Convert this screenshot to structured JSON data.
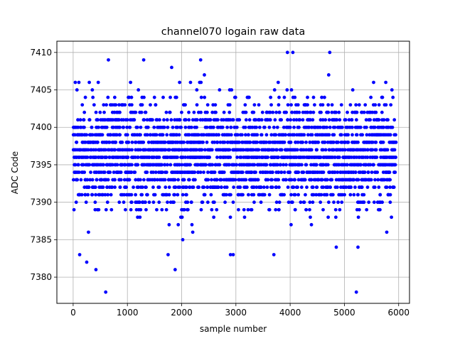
{
  "chart_data": {
    "type": "scatter",
    "title": "channel070 logain raw data",
    "xlabel": "sample number",
    "ylabel": "ADC Code",
    "xlim": [
      -300,
      6200
    ],
    "ylim": [
      7376.5,
      7411.5
    ],
    "xticks": [
      0,
      1000,
      2000,
      3000,
      4000,
      5000,
      6000
    ],
    "yticks": [
      7380,
      7385,
      7390,
      7395,
      7400,
      7405,
      7410
    ],
    "grid": true,
    "marker_color": "#0000ff",
    "sample_range": [
      0,
      5940
    ],
    "value_range": [
      7378,
      7410
    ],
    "series": [
      {
        "code_levels": [
          7378,
          7381,
          7382,
          7383,
          7384,
          7385,
          7386,
          7387,
          7388,
          7389,
          7390,
          7391,
          7392,
          7393,
          7394,
          7395,
          7396,
          7397,
          7398,
          7399,
          7400,
          7401,
          7402,
          7403,
          7404,
          7405,
          7406,
          7407,
          7408,
          7409,
          7410
        ],
        "outliers": {
          "x": [
            600,
            5220,
            420,
            1880,
            250,
            120,
            1750,
            2900,
            2950,
            3700,
            3950,
            4050,
            4730,
            2350,
            1300,
            650,
            4850,
            5250
          ],
          "y": [
            7378,
            7378,
            7381,
            7381,
            7382,
            7383,
            7383,
            7383,
            7383,
            7383,
            7410,
            7410,
            7410,
            7409,
            7409,
            7409,
            7384,
            7384
          ]
        }
      }
    ]
  }
}
